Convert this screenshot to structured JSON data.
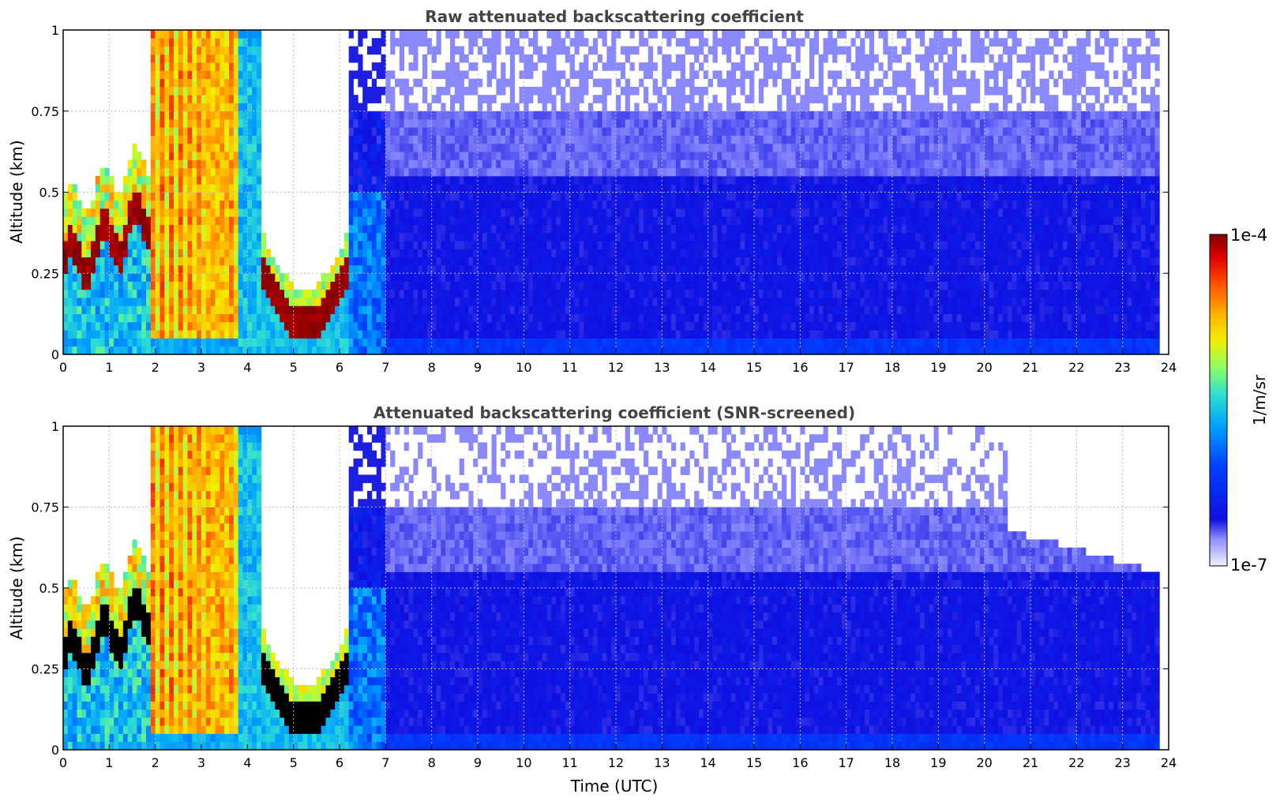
{
  "chart_data": [
    {
      "type": "heatmap",
      "id": "raw",
      "title": "Raw attenuated backscattering coefficient",
      "xlabel": "",
      "ylabel": "Altitude (km)",
      "xlim": [
        0,
        24
      ],
      "ylim": [
        0,
        1
      ],
      "x_ticks": [
        "0",
        "1",
        "2",
        "3",
        "4",
        "5",
        "6",
        "7",
        "8",
        "9",
        "10",
        "11",
        "12",
        "13",
        "14",
        "15",
        "16",
        "17",
        "18",
        "19",
        "20",
        "21",
        "22",
        "23",
        "24"
      ],
      "y_ticks": [
        "0",
        "0.25",
        "0.5",
        "0.75",
        "1"
      ],
      "grid": true,
      "data_end_time": 23.8,
      "structures": [
        {
          "x": [
            0,
            2
          ],
          "layer_top_km": [
            0.32,
            0.5
          ],
          "description_color": "dark red",
          "log_value_peak": -4
        },
        {
          "x": [
            1.9,
            3.8
          ],
          "band": "yellow-orange",
          "log_value": -4.8
        },
        {
          "x": [
            4.2,
            6.2
          ],
          "layer_km": [
            0.1,
            0.3
          ],
          "log_value_peak": -4
        },
        {
          "x": [
            7,
            23.8
          ],
          "background": "blue",
          "log_value": -6.5
        }
      ]
    },
    {
      "type": "heatmap",
      "id": "screened",
      "title": "Attenuated backscattering coefficient (SNR-screened)",
      "xlabel": "Time (UTC)",
      "ylabel": "Altitude (km)",
      "xlim": [
        0,
        24
      ],
      "ylim": [
        0,
        1
      ],
      "x_ticks": [
        "0",
        "1",
        "2",
        "3",
        "4",
        "5",
        "6",
        "7",
        "8",
        "9",
        "10",
        "11",
        "12",
        "13",
        "14",
        "15",
        "16",
        "17",
        "18",
        "19",
        "20",
        "21",
        "22",
        "23",
        "24"
      ],
      "y_ticks": [
        "0",
        "0.25",
        "0.5",
        "0.75",
        "1"
      ],
      "grid": true,
      "data_end_time": 23.8,
      "colorbar": {
        "min_label": "1e-7",
        "max_label": "1e-4",
        "label": "1/m/sr",
        "scale": "log",
        "min": 1e-07,
        "max": 0.0001
      }
    }
  ]
}
